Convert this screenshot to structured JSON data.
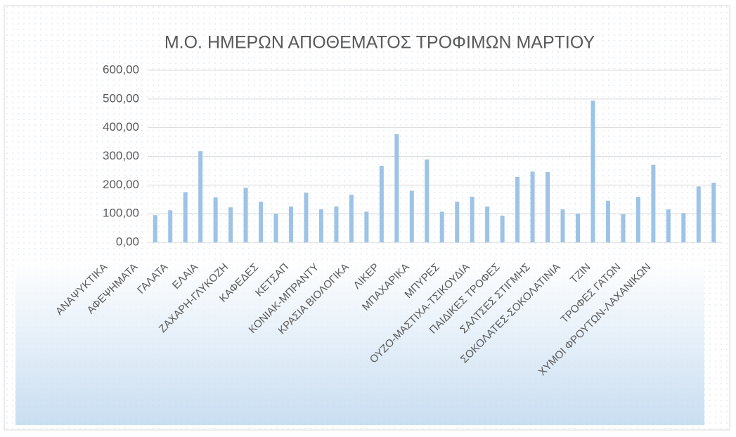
{
  "chart_data": {
    "type": "bar",
    "title": "Μ.Ο. ΗΜΕΡΩΝ ΑΠΟΘΕΜΑΤΟΣ ΤΡΟΦΙΜΩΝ ΜΑΡΤΙΟΥ",
    "categories": [
      "ΑΝΑΨΥΚΤΙΚΑ",
      null,
      "ΑΦΕΨΗΜΑΤΑ",
      null,
      "ΓΑΛΑΤΑ",
      null,
      "ΕΛΑΙΑ",
      null,
      "ΖΑΧΑΡΗ-ΓΛΥΚΟΖΗ",
      null,
      "ΚΑΦΕΔΕΣ",
      null,
      "ΚΕΤΣΑΠ",
      null,
      "ΚΟΝΙΑΚ-ΜΠΡΑΝΤΥ",
      null,
      "ΚΡΑΣΙΑ ΒΙΟΛΟΓΙΚΑ",
      null,
      "ΛΙΚΕΡ",
      null,
      "ΜΠΑΧΑΡΙΚΑ",
      null,
      "ΜΠΥΡΕΣ",
      null,
      "ΟΥΖΟ-ΜΑΣΤΙΧΑ-ΤΣΙΚΟΥΔΙΑ",
      null,
      "ΠΑΙΔΙΚΕΣ ΤΡΟΦΕΣ",
      null,
      "ΣΑΛΤΣΕΣ ΣΤΙΓΜΗΣ",
      null,
      "ΣΟΚΟΛΑΤΕΣ-ΣΟΚΟΛΑΤΙΝΙΑ",
      null,
      "ΤΖΙΝ",
      null,
      "ΤΡΟΦΕΣ ΓΑΤΩΝ",
      null,
      "ΧΥΜΟΙ ΦΡΟΥΤΩΝ-ΛΑΧΑΝΙΚΩΝ",
      null
    ],
    "values": [
      95,
      112,
      175,
      318,
      157,
      122,
      190,
      142,
      100,
      125,
      173,
      115,
      125,
      166,
      107,
      267,
      377,
      180,
      289,
      107,
      142,
      159,
      125,
      93,
      228,
      247,
      245,
      115,
      100,
      494,
      145,
      98,
      159,
      270,
      115,
      102,
      195,
      208
    ],
    "color": "#9dc3e6",
    "ylim": [
      0,
      600
    ],
    "yticks": [
      {
        "value": 0,
        "label": "0,00"
      },
      {
        "value": 100,
        "label": "100,00"
      },
      {
        "value": 200,
        "label": "200,00"
      },
      {
        "value": 300,
        "label": "300,00"
      },
      {
        "value": 400,
        "label": "400,00"
      },
      {
        "value": 500,
        "label": "500,00"
      },
      {
        "value": 600,
        "label": "600,00"
      }
    ],
    "grid": true
  }
}
